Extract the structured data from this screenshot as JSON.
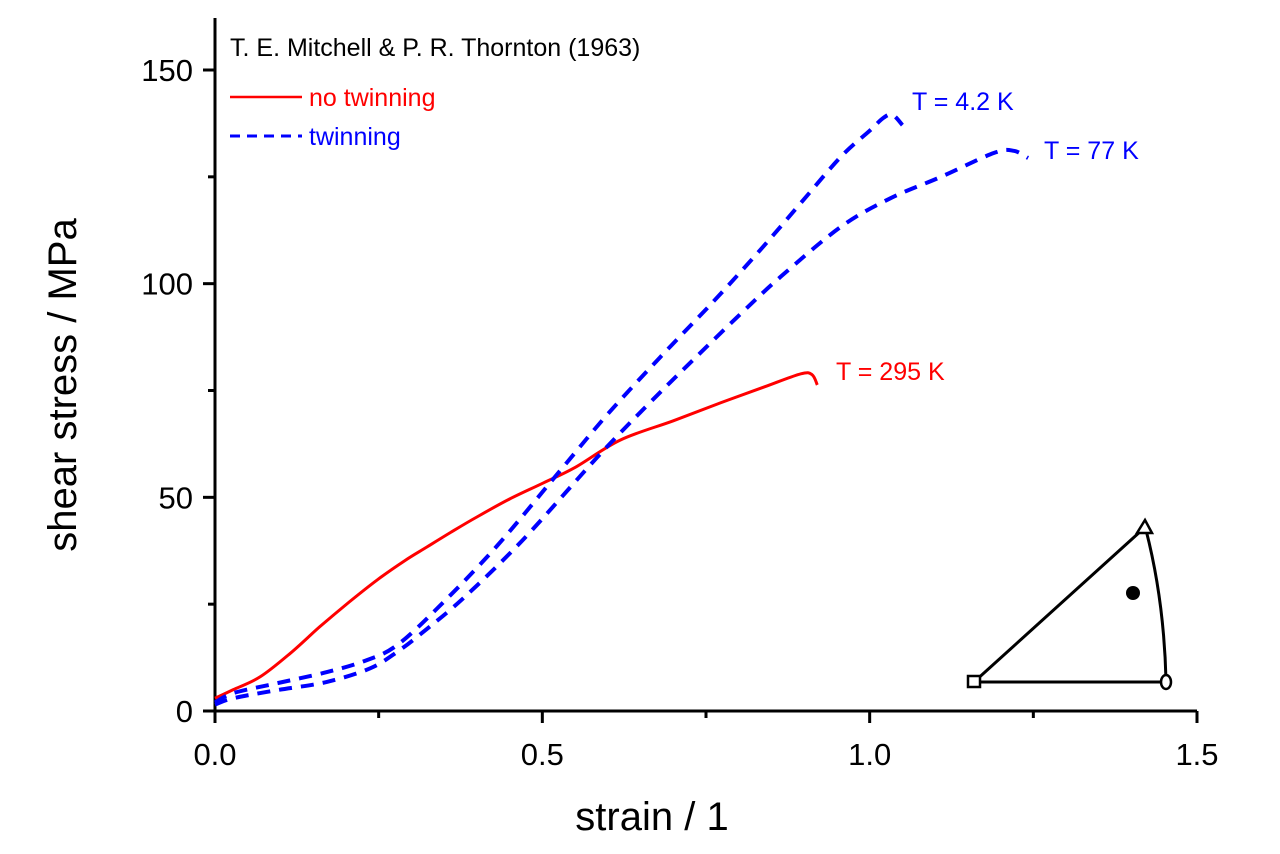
{
  "chart_data": {
    "type": "line",
    "title": "T. E. Mitchell & P. R. Thornton (1963)",
    "xlabel": "strain / 1",
    "ylabel": "shear stress / MPa",
    "xlim": [
      0,
      1.5
    ],
    "ylim": [
      0,
      160
    ],
    "xticks": [
      0.0,
      0.5,
      1.0,
      1.5
    ],
    "xtick_labels": [
      "0.0",
      "0.5",
      "1.0",
      "1.5"
    ],
    "xminor_ticks": [
      0.25,
      0.75,
      1.25
    ],
    "yticks": [
      0,
      50,
      100,
      150
    ],
    "ytick_labels": [
      "0",
      "50",
      "100",
      "150"
    ],
    "yminor_ticks": [
      25,
      75,
      125
    ],
    "grid": false,
    "legend": {
      "placement": "top-left",
      "entries": [
        {
          "label": "no twinning",
          "style": "solid",
          "color": "#ff0000"
        },
        {
          "label": "twinning",
          "style": "dashed",
          "color": "#0000ff"
        }
      ]
    },
    "series": [
      {
        "name": "T = 295 K",
        "group": "no twinning",
        "style": "solid",
        "color": "#ff0000",
        "x": [
          0.0,
          0.028,
          0.069,
          0.115,
          0.16,
          0.205,
          0.248,
          0.29,
          0.324,
          0.36,
          0.4,
          0.45,
          0.502,
          0.55,
          0.619,
          0.7,
          0.772,
          0.84,
          0.895,
          0.912,
          0.92
        ],
        "y": [
          3.0,
          5.0,
          8.0,
          13.5,
          19.7,
          25.5,
          30.7,
          35.2,
          38.4,
          41.8,
          45.4,
          49.6,
          53.4,
          57.0,
          63.4,
          67.9,
          72.1,
          75.9,
          78.9,
          78.7,
          76.3
        ]
      },
      {
        "name": "T = 4.2 K",
        "group": "twinning",
        "style": "dashed",
        "color": "#0000ff",
        "x": [
          0.0,
          0.028,
          0.095,
          0.171,
          0.232,
          0.278,
          0.34,
          0.43,
          0.528,
          0.6,
          0.68,
          0.76,
          0.833,
          0.895,
          0.956,
          1.0,
          1.021,
          1.035,
          1.05
        ],
        "y": [
          2.0,
          4.2,
          6.5,
          9.1,
          11.9,
          15.4,
          24.1,
          38.5,
          56.4,
          69.5,
          82.8,
          95.6,
          107.9,
          118.9,
          129.7,
          135.8,
          138.8,
          139.5,
          137.1
        ]
      },
      {
        "name": "T = 77 K",
        "group": "twinning",
        "style": "dashed",
        "color": "#0000ff",
        "x": [
          0.0,
          0.028,
          0.095,
          0.171,
          0.237,
          0.278,
          0.318,
          0.38,
          0.47,
          0.584,
          0.66,
          0.73,
          0.8,
          0.864,
          0.956,
          1.032,
          1.109,
          1.19,
          1.22,
          1.242
        ],
        "y": [
          1.5,
          3.0,
          4.9,
          6.8,
          10.0,
          13.8,
          18.5,
          26.5,
          40.0,
          59.4,
          71.5,
          82.1,
          92.5,
          101.6,
          113.3,
          120.0,
          125.0,
          130.6,
          131.1,
          129.4
        ]
      }
    ],
    "annotations": [
      {
        "text": "T = 4.2 K",
        "color": "#0000ff",
        "at": [
          1.06,
          143
        ]
      },
      {
        "text": "T = 77 K",
        "color": "#0000ff",
        "at": [
          1.26,
          130
        ]
      },
      {
        "text": "T = 295 K",
        "color": "#ff0000",
        "at": [
          0.95,
          79
        ]
      }
    ],
    "inset": {
      "description": "stereographic triangle with tensile axis orientation",
      "corner_markers": [
        "square",
        "oval",
        "triangle"
      ],
      "orientation_point": "filled-dot"
    }
  }
}
